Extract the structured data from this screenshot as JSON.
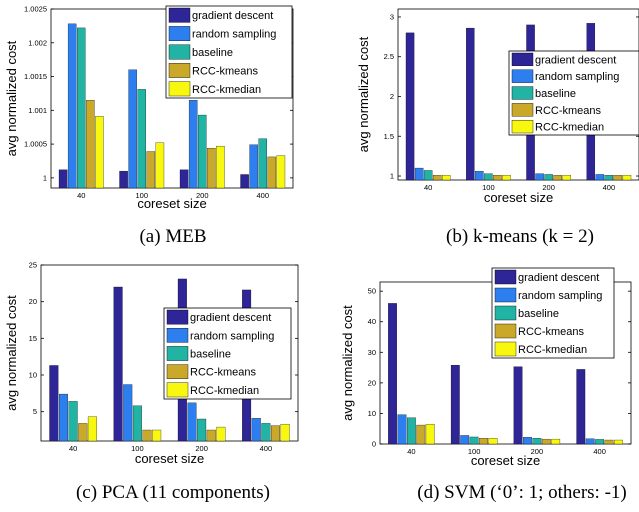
{
  "series_colors": [
    "#2e2596",
    "#2d7ff0",
    "#21b3a3",
    "#c9a82a",
    "#f7f70f"
  ],
  "chart_data": [
    {
      "type": "bar",
      "caption": "(a) MEB",
      "xlabel": "coreset size",
      "ylabel": "avg normalized cost",
      "categories": [
        "40",
        "100",
        "200",
        "400"
      ],
      "ylim": [
        0.99985,
        1.0025
      ],
      "yticks": [
        1,
        1.0005,
        1.001,
        1.0015,
        1.002,
        1.0025
      ],
      "ytick_labels": [
        "1",
        "1.0005",
        "1.001",
        "1.0015",
        "1.002",
        "1.0025"
      ],
      "legend_position": "top-right",
      "series": [
        {
          "name": "gradient descent",
          "values": [
            1.00012,
            1.0001,
            1.00012,
            1.00005
          ]
        },
        {
          "name": "random sampling",
          "values": [
            1.00228,
            1.0016,
            1.00115,
            1.00049
          ]
        },
        {
          "name": "baseline",
          "values": [
            1.00222,
            1.00131,
            1.00093,
            1.00058
          ]
        },
        {
          "name": "RCC-kmeans",
          "values": [
            1.00115,
            1.00039,
            1.00044,
            1.00031
          ]
        },
        {
          "name": "RCC-kmedian",
          "values": [
            1.00091,
            1.00052,
            1.00047,
            1.00033
          ]
        }
      ]
    },
    {
      "type": "bar",
      "caption": "(b) k-means (k = 2)",
      "xlabel": "coreset size",
      "ylabel": "avg normalized cost",
      "categories": [
        "40",
        "100",
        "200",
        "400"
      ],
      "ylim": [
        0.95,
        3.1
      ],
      "yticks": [
        1,
        1.5,
        2,
        2.5,
        3
      ],
      "ytick_labels": [
        "1",
        "1.5",
        "2",
        "2.5",
        "3"
      ],
      "legend_position": "right",
      "series": [
        {
          "name": "gradient descent",
          "values": [
            2.8,
            2.86,
            2.9,
            2.92
          ]
        },
        {
          "name": "random sampling",
          "values": [
            1.1,
            1.06,
            1.03,
            1.02
          ]
        },
        {
          "name": "baseline",
          "values": [
            1.07,
            1.03,
            1.02,
            1.01
          ]
        },
        {
          "name": "RCC-kmeans",
          "values": [
            1.01,
            1.01,
            1.01,
            1.01
          ]
        },
        {
          "name": "RCC-kmedian",
          "values": [
            1.01,
            1.01,
            1.01,
            1.01
          ]
        }
      ]
    },
    {
      "type": "bar",
      "caption": "(c) PCA (11 components)",
      "xlabel": "coreset size",
      "ylabel": "avg normalized cost",
      "categories": [
        "40",
        "100",
        "200",
        "400"
      ],
      "ylim": [
        1,
        25
      ],
      "yticks": [
        5,
        10,
        15,
        20,
        25
      ],
      "ytick_labels": [
        "5",
        "10",
        "15",
        "20",
        "25"
      ],
      "legend_position": "right",
      "series": [
        {
          "name": "gradient descent",
          "values": [
            11.3,
            22,
            23.1,
            21.6
          ]
        },
        {
          "name": "random sampling",
          "values": [
            7.4,
            8.7,
            6.2,
            4.1
          ]
        },
        {
          "name": "baseline",
          "values": [
            6.4,
            5.8,
            4.0,
            3.4
          ]
        },
        {
          "name": "RCC-kmeans",
          "values": [
            3.4,
            2.5,
            2.5,
            3.1
          ]
        },
        {
          "name": "RCC-kmedian",
          "values": [
            4.3,
            2.5,
            2.9,
            3.3
          ]
        }
      ]
    },
    {
      "type": "bar",
      "caption": "(d) SVM (‘0’: 1; others: -1)",
      "xlabel": "coreset size",
      "ylabel": "avg normalized cost",
      "categories": [
        "40",
        "100",
        "200",
        "400"
      ],
      "ylim": [
        0,
        53
      ],
      "yticks": [
        0,
        10,
        20,
        30,
        40,
        50
      ],
      "ytick_labels": [
        "0",
        "10",
        "20",
        "30",
        "40",
        "50"
      ],
      "legend_position": "top-right",
      "series": [
        {
          "name": "gradient descent",
          "values": [
            46,
            25.8,
            25.3,
            24.4
          ]
        },
        {
          "name": "random sampling",
          "values": [
            9.6,
            2.8,
            2.2,
            1.7
          ]
        },
        {
          "name": "baseline",
          "values": [
            8.6,
            2.3,
            1.9,
            1.5
          ]
        },
        {
          "name": "RCC-kmeans",
          "values": [
            6.2,
            1.9,
            1.6,
            1.3
          ]
        },
        {
          "name": "RCC-kmedian",
          "values": [
            6.5,
            1.9,
            1.6,
            1.3
          ]
        }
      ]
    }
  ]
}
